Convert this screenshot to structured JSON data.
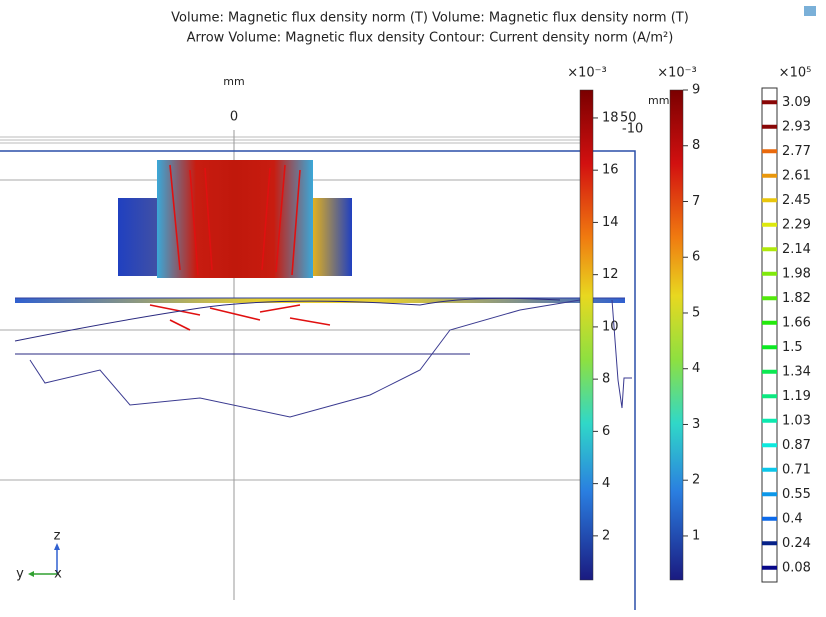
{
  "title_lines": [
    "Volume: Magnetic flux density norm (T)  Volume: Magnetic flux density norm (T)",
    "Arrow Volume: Magnetic flux density  Contour: Current density norm (A/m²)"
  ],
  "axis": {
    "unit": "mm",
    "zero_label": "0",
    "side_unit": "mm",
    "side_label_1": "50",
    "side_label_2": "-10"
  },
  "triad": {
    "z": "z",
    "y": "y",
    "x": "x"
  },
  "colorbars": [
    {
      "multiplier": "×10⁻³",
      "lim": [
        0.31,
        19.07
      ],
      "ticks": [
        2,
        4,
        6,
        8,
        10,
        12,
        14,
        16,
        18
      ]
    },
    {
      "multiplier": "×10⁻³",
      "lim": [
        0.21,
        9
      ],
      "ticks": [
        1,
        2,
        3,
        4,
        5,
        6,
        7,
        8,
        9
      ]
    }
  ],
  "contour_legend": {
    "multiplier": "×10⁵",
    "levels": [
      3.09,
      2.93,
      2.77,
      2.61,
      2.45,
      2.29,
      2.14,
      1.98,
      1.82,
      1.66,
      1.5,
      1.34,
      1.19,
      1.03,
      0.87,
      0.71,
      0.55,
      0.4,
      0.24,
      0.08
    ]
  }
}
